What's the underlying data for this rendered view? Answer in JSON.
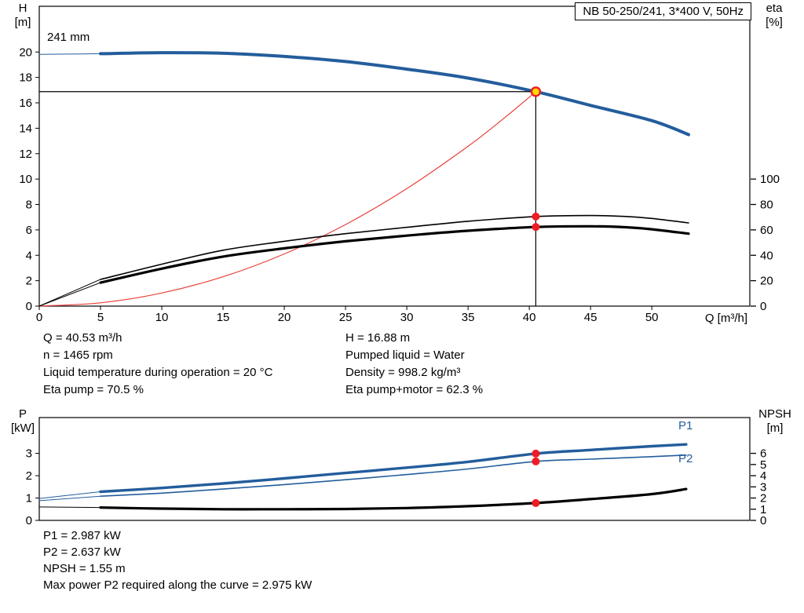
{
  "title_box": "NB 50-250/241, 3*400 V, 50Hz",
  "impeller_label": "241 mm",
  "colors": {
    "blue": "#235d9c",
    "black": "#000000",
    "red_curve": "#e8403a",
    "red_dot": "#ee1c25",
    "duty_fill": "#ffd800"
  },
  "info_top": {
    "left": [
      "Q = 40.53 m³/h",
      "n = 1465 rpm",
      "Liquid temperature during operation = 20 °C",
      "Eta pump = 70.5 %"
    ],
    "right": [
      "H = 16.88 m",
      "Pumped liquid = Water",
      "Density = 998.2 kg/m³",
      "Eta pump+motor = 62.3 %"
    ]
  },
  "info_bottom": [
    "P1 = 2.987 kW",
    "P2 = 2.637 kW",
    "NPSH = 1.55 m",
    "Max power P2 required along the curve = 2.975 kW"
  ],
  "chart_data": [
    {
      "name": "hq-chart",
      "type": "line",
      "title": "NB 50-250/241, 3*400 V, 50Hz",
      "xlabel": "Q [m³/h]",
      "ylabel_left": [
        "H",
        "[m]"
      ],
      "ylabel_right": [
        "eta",
        "[%]"
      ],
      "xlim": [
        0,
        58
      ],
      "ylim": [
        0,
        23.6
      ],
      "ylim_right": [
        0,
        236
      ],
      "x_ticks": [
        0,
        5,
        10,
        15,
        20,
        25,
        30,
        35,
        40,
        45,
        50
      ],
      "y_ticks": [
        0,
        2,
        4,
        6,
        8,
        10,
        12,
        14,
        16,
        18,
        20
      ],
      "y_ticks_right": [
        0,
        20,
        40,
        60,
        80,
        100
      ],
      "duty": {
        "q": 40.53,
        "h": 16.88
      },
      "series": [
        {
          "name": "head-curve-lead",
          "axis": "left",
          "color": "blue",
          "width": 1,
          "x": [
            0,
            2.5,
            5
          ],
          "y": [
            19.82,
            19.84,
            19.87
          ]
        },
        {
          "name": "head-curve",
          "axis": "left",
          "color": "blue",
          "width": 4,
          "x": [
            5,
            10,
            15,
            20,
            25,
            30,
            35,
            40.53,
            45,
            50,
            53
          ],
          "y": [
            19.87,
            19.95,
            19.9,
            19.65,
            19.25,
            18.65,
            17.95,
            16.88,
            15.8,
            14.6,
            13.5
          ]
        },
        {
          "name": "system-curve",
          "axis": "left",
          "color": "red_curve",
          "width": 1.2,
          "x": [
            0,
            5,
            10,
            15,
            20,
            25,
            30,
            35,
            38,
            40.53
          ],
          "y": [
            0,
            0.26,
            1.03,
            2.31,
            4.11,
            6.42,
            9.25,
            12.58,
            14.84,
            16.88
          ]
        },
        {
          "name": "eta-pump-lead",
          "axis": "right",
          "color": "black",
          "width": 1,
          "x": [
            0,
            5
          ],
          "y": [
            0,
            21
          ]
        },
        {
          "name": "eta-pump-curve",
          "axis": "right",
          "color": "black",
          "width": 1.6,
          "x": [
            5,
            10,
            15,
            20,
            25,
            30,
            35,
            40.53,
            45,
            48,
            50,
            53
          ],
          "y": [
            21,
            33,
            44,
            51,
            57,
            62,
            66.8,
            70.5,
            71.3,
            70.5,
            69,
            65.5
          ]
        },
        {
          "name": "eta-pump-motor-lead",
          "axis": "right",
          "color": "black",
          "width": 1,
          "x": [
            0,
            5
          ],
          "y": [
            0,
            18.5
          ]
        },
        {
          "name": "eta-pump-motor-curve",
          "axis": "right",
          "color": "black",
          "width": 3.2,
          "x": [
            5,
            10,
            15,
            20,
            25,
            30,
            35,
            40.53,
            45,
            48,
            50,
            53
          ],
          "y": [
            18.5,
            29.5,
            39,
            45.5,
            51,
            55.5,
            59.3,
            62.3,
            62.8,
            62,
            60.5,
            57
          ]
        }
      ],
      "markers": [
        {
          "name": "eta-pump-dot",
          "q": 40.53,
          "v": 70.5,
          "axis": "right",
          "r": 5,
          "fill": "red_dot"
        },
        {
          "name": "eta-pump-motor-dot",
          "q": 40.53,
          "v": 62.3,
          "axis": "right",
          "r": 5,
          "fill": "red_dot"
        },
        {
          "name": "duty-point",
          "q": 40.53,
          "v": 16.88,
          "axis": "left",
          "r": 5.5,
          "fill": "duty_fill",
          "stroke": "red_dot",
          "stroke_width": 2.4
        }
      ]
    },
    {
      "name": "power-chart",
      "type": "line",
      "xlabel": "",
      "ylabel_left": [
        "P",
        "[kW]"
      ],
      "ylabel_right": [
        "NPSH",
        "[m]"
      ],
      "xlim": [
        0,
        58
      ],
      "ylim": [
        0,
        4.6
      ],
      "ylim_right": [
        0,
        9.2
      ],
      "x_ticks": [],
      "y_ticks": [
        0,
        1,
        2,
        3
      ],
      "y_ticks_right": [
        0,
        1,
        2,
        3,
        4,
        5,
        6
      ],
      "series": [
        {
          "name": "p1-curve-lead",
          "axis": "left",
          "color": "blue",
          "width": 1,
          "x": [
            0,
            5
          ],
          "y": [
            0.98,
            1.28
          ]
        },
        {
          "name": "p1-curve",
          "axis": "left",
          "color": "blue",
          "width": 3.4,
          "x": [
            5,
            10,
            15,
            20,
            25,
            30,
            35,
            40.53,
            45,
            50,
            52.8
          ],
          "y": [
            1.28,
            1.45,
            1.65,
            1.88,
            2.12,
            2.36,
            2.62,
            2.987,
            3.15,
            3.32,
            3.4
          ]
        },
        {
          "name": "p2-curve-lead",
          "axis": "left",
          "color": "blue",
          "width": 1,
          "x": [
            0,
            5
          ],
          "y": [
            0.88,
            1.08
          ]
        },
        {
          "name": "p2-curve",
          "axis": "left",
          "color": "blue",
          "width": 1.6,
          "x": [
            5,
            10,
            15,
            20,
            25,
            30,
            35,
            40.53,
            45,
            50,
            52.8
          ],
          "y": [
            1.08,
            1.22,
            1.4,
            1.6,
            1.82,
            2.05,
            2.3,
            2.637,
            2.74,
            2.85,
            2.92
          ]
        },
        {
          "name": "npsh-curve-lead",
          "axis": "right",
          "color": "black",
          "width": 1,
          "x": [
            0,
            5
          ],
          "y": [
            1.2,
            1.15
          ]
        },
        {
          "name": "npsh-curve",
          "axis": "right",
          "color": "black",
          "width": 3.2,
          "x": [
            5,
            10,
            15,
            20,
            25,
            30,
            35,
            40.53,
            45,
            50,
            52.8
          ],
          "y": [
            1.15,
            1.05,
            1.0,
            1.0,
            1.02,
            1.1,
            1.27,
            1.55,
            1.9,
            2.35,
            2.8
          ]
        }
      ],
      "markers": [
        {
          "name": "p1-dot",
          "q": 40.53,
          "v": 2.987,
          "axis": "left",
          "r": 5,
          "fill": "red_dot"
        },
        {
          "name": "p2-dot",
          "q": 40.53,
          "v": 2.637,
          "axis": "left",
          "r": 5,
          "fill": "red_dot"
        },
        {
          "name": "npsh-dot",
          "q": 40.53,
          "v": 1.55,
          "axis": "right",
          "r": 5,
          "fill": "red_dot"
        }
      ],
      "series_labels": {
        "p1": "P1",
        "p2": "P2"
      }
    }
  ]
}
